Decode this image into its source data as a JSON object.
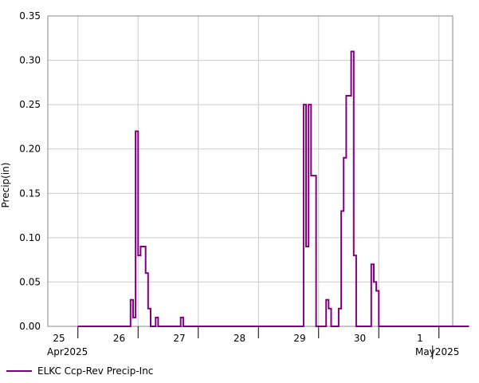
{
  "chart_data": {
    "type": "line",
    "step": true,
    "ylabel": "Precip(in)",
    "ylim": [
      0,
      0.35
    ],
    "yticks": [
      "0.00",
      "0.05",
      "0.10",
      "0.15",
      "0.20",
      "0.25",
      "0.30",
      "0.35"
    ],
    "x_day_labels": [
      "25",
      "26",
      "27",
      "28",
      "29",
      "30",
      "1"
    ],
    "x_month_labels": [
      "Apr2025",
      "May2025"
    ],
    "grid": true,
    "legend_position": "bottom-left",
    "series": [
      {
        "name": "ELKC Ccp-Rev Precip-Inc",
        "color": "#800080",
        "points": [
          [
            "2025-04-25 00:00",
            0.0
          ],
          [
            "2025-04-25 21:00",
            0.03
          ],
          [
            "2025-04-25 22:00",
            0.01
          ],
          [
            "2025-04-25 23:00",
            0.22
          ],
          [
            "2025-04-26 00:00",
            0.08
          ],
          [
            "2025-04-26 01:00",
            0.09
          ],
          [
            "2025-04-26 03:00",
            0.06
          ],
          [
            "2025-04-26 04:00",
            0.02
          ],
          [
            "2025-04-26 05:00",
            0.0
          ],
          [
            "2025-04-26 07:00",
            0.01
          ],
          [
            "2025-04-26 08:00",
            0.0
          ],
          [
            "2025-04-26 17:00",
            0.01
          ],
          [
            "2025-04-26 18:00",
            0.0
          ],
          [
            "2025-04-28 18:00",
            0.25
          ],
          [
            "2025-04-28 19:00",
            0.09
          ],
          [
            "2025-04-28 20:00",
            0.25
          ],
          [
            "2025-04-28 21:00",
            0.17
          ],
          [
            "2025-04-28 23:00",
            0.0
          ],
          [
            "2025-04-29 03:00",
            0.03
          ],
          [
            "2025-04-29 04:00",
            0.02
          ],
          [
            "2025-04-29 05:00",
            0.0
          ],
          [
            "2025-04-29 08:00",
            0.02
          ],
          [
            "2025-04-29 09:00",
            0.13
          ],
          [
            "2025-04-29 10:00",
            0.19
          ],
          [
            "2025-04-29 11:00",
            0.26
          ],
          [
            "2025-04-29 13:00",
            0.31
          ],
          [
            "2025-04-29 14:00",
            0.08
          ],
          [
            "2025-04-29 15:00",
            0.0
          ],
          [
            "2025-04-29 21:00",
            0.07
          ],
          [
            "2025-04-29 22:00",
            0.05
          ],
          [
            "2025-04-29 23:00",
            0.04
          ],
          [
            "2025-04-30 00:00",
            0.0
          ],
          [
            "2025-05-01 12:00",
            0.0
          ]
        ]
      }
    ]
  }
}
